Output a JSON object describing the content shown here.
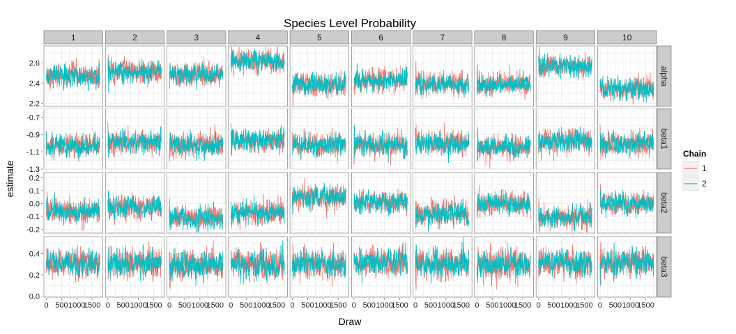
{
  "chart_data": {
    "type": "line",
    "title": "Species Level Probability",
    "xlabel": "Draw",
    "ylabel": "estimate",
    "facet_columns": [
      "1",
      "2",
      "3",
      "4",
      "5",
      "6",
      "7",
      "8",
      "9",
      "10"
    ],
    "facet_rows": [
      {
        "name": "alpha",
        "ylim": [
          2.17,
          2.77
        ],
        "ticks": [
          2.2,
          2.4,
          2.6
        ],
        "tick_labels": [
          "2.2",
          "2.4",
          "2.6"
        ],
        "means": [
          2.47,
          2.52,
          2.48,
          2.62,
          2.39,
          2.43,
          2.39,
          2.39,
          2.57,
          2.35
        ],
        "noise": 0.05
      },
      {
        "name": "beta1",
        "ylim": [
          -1.3,
          -0.6
        ],
        "ticks": [
          -1.3,
          -1.1,
          -0.9,
          -0.7
        ],
        "tick_labels": [
          "-1.3",
          "-1.1",
          "-0.9",
          "-0.7"
        ],
        "means": [
          -1.03,
          -0.99,
          -1.02,
          -0.97,
          -1.02,
          -1.03,
          -1.0,
          -1.05,
          -0.98,
          -1.0
        ],
        "noise": 0.06
      },
      {
        "name": "beta2",
        "ylim": [
          -0.23,
          0.24
        ],
        "ticks": [
          -0.2,
          -0.1,
          0.0,
          0.1,
          0.2
        ],
        "tick_labels": [
          "-0.2",
          "-0.1",
          "0.0",
          "0.1",
          "0.2"
        ],
        "means": [
          -0.06,
          -0.03,
          -0.11,
          -0.07,
          0.05,
          0.01,
          -0.08,
          0.0,
          -0.11,
          0.0
        ],
        "noise": 0.04
      },
      {
        "name": "beta3",
        "ylim": [
          -0.01,
          0.56
        ],
        "ticks": [
          0.0,
          0.2,
          0.4
        ],
        "tick_labels": [
          "0.0",
          "0.2",
          "0.4"
        ],
        "means": [
          0.31,
          0.31,
          0.29,
          0.3,
          0.3,
          0.32,
          0.31,
          0.3,
          0.3,
          0.32
        ],
        "noise": 0.06
      }
    ],
    "x_range": [
      -80,
      1850
    ],
    "x_ticks": [
      0,
      500,
      1000,
      1500
    ],
    "x_tick_labels": [
      "0",
      "500",
      "1000",
      "1500"
    ],
    "draws_per_chain": 1750,
    "legend": {
      "title": "Chain",
      "placement": "right",
      "entries": [
        {
          "label": "1",
          "color": "#F8766D"
        },
        {
          "label": "2",
          "color": "#00BFC4"
        }
      ]
    },
    "grid": true,
    "panel_background": "#ffffff",
    "grid_color": "#ebebeb",
    "strip_background": "#cccccc"
  }
}
